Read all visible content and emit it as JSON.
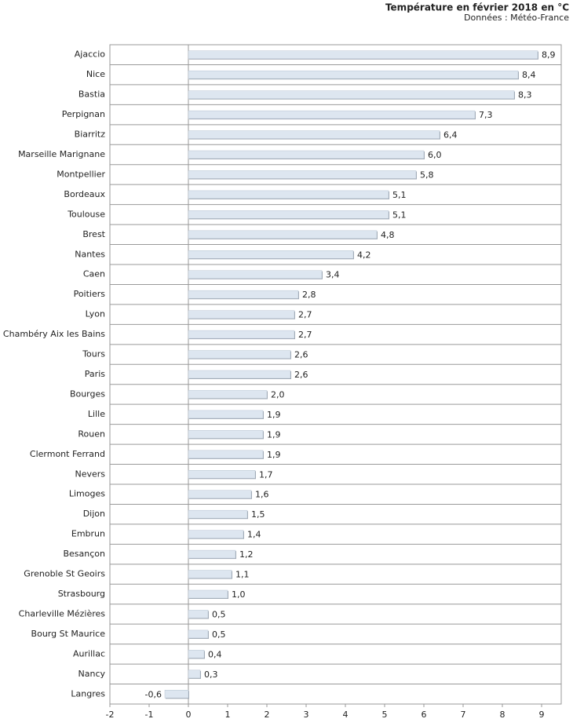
{
  "chart_data": {
    "type": "bar",
    "orientation": "horizontal",
    "title": "Température en février 2018 en °C",
    "subtitle": "Données : Météo-France",
    "categories": [
      "Ajaccio",
      "Nice",
      "Bastia",
      "Perpignan",
      "Biarritz",
      "Marseille Marignane",
      "Montpellier",
      "Bordeaux",
      "Toulouse",
      "Brest",
      "Nantes",
      "Caen",
      "Poitiers",
      "Lyon",
      "Chambéry Aix les Bains",
      "Tours",
      "Paris",
      "Bourges",
      "Lille",
      "Rouen",
      "Clermont Ferrand",
      "Nevers",
      "Limoges",
      "Dijon",
      "Embrun",
      "Besançon",
      "Grenoble St Geoirs",
      "Strasbourg",
      "Charleville Mézières",
      "Bourg St Maurice",
      "Aurillac",
      "Nancy",
      "Langres"
    ],
    "values": [
      8.9,
      8.4,
      8.3,
      7.3,
      6.4,
      6.0,
      5.8,
      5.1,
      5.1,
      4.8,
      4.2,
      3.4,
      2.8,
      2.7,
      2.7,
      2.6,
      2.6,
      2.0,
      1.9,
      1.9,
      1.9,
      1.7,
      1.6,
      1.5,
      1.4,
      1.2,
      1.1,
      1.0,
      0.5,
      0.5,
      0.4,
      0.3,
      -0.6
    ],
    "value_labels": [
      "8,9",
      "8,4",
      "8,3",
      "7,3",
      "6,4",
      "6,0",
      "5,8",
      "5,1",
      "5,1",
      "4,8",
      "4,2",
      "3,4",
      "2,8",
      "2,7",
      "2,7",
      "2,6",
      "2,6",
      "2,0",
      "1,9",
      "1,9",
      "1,9",
      "1,7",
      "1,6",
      "1,5",
      "1,4",
      "1,2",
      "1,1",
      "1,0",
      "0,5",
      "0,5",
      "0,4",
      "0,3",
      "-0,6"
    ],
    "color": "#dde6f0",
    "xlim": [
      -2,
      9.5
    ],
    "xticks": [
      -2,
      -1,
      0,
      1,
      2,
      3,
      4,
      5,
      6,
      7,
      8,
      9
    ]
  }
}
